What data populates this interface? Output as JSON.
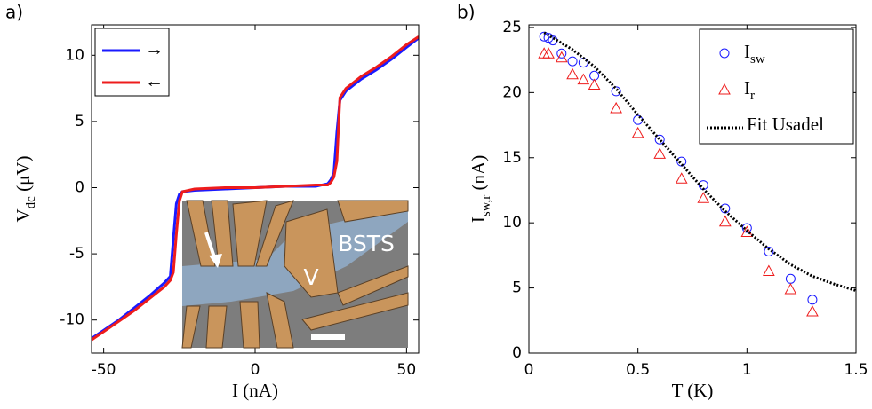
{
  "panel_labels": [
    "a)",
    "b)"
  ],
  "chart_data": [
    {
      "type": "line",
      "xlabel": "I (nA)",
      "ylabel": {
        "text": "V",
        "sub": "dc",
        "unit": " (μV)"
      },
      "xlim": [
        -54,
        54
      ],
      "ylim": [
        -12.5,
        12.3
      ],
      "xticks": [
        -50,
        0,
        50
      ],
      "yticks": [
        -10,
        -5,
        0,
        5,
        10
      ],
      "legend": "upper left",
      "x": [
        -54,
        -45,
        -40,
        -35,
        -30,
        -28,
        -27,
        -26,
        -25,
        -24,
        -20,
        -10,
        0,
        10,
        20,
        24,
        25,
        26,
        27,
        28,
        30,
        35,
        40,
        45,
        50,
        54
      ],
      "series": [
        {
          "name": "→",
          "color": "#1a1aff",
          "values": [
            -11.4,
            -10.0,
            -9.1,
            -8.2,
            -7.2,
            -6.7,
            -3.9,
            -1.2,
            -0.5,
            -0.3,
            -0.2,
            -0.1,
            0.0,
            0.1,
            0.1,
            0.3,
            0.6,
            1.1,
            4.2,
            6.6,
            7.3,
            8.2,
            8.9,
            9.7,
            10.6,
            11.3
          ]
        },
        {
          "name": "←",
          "color": "#ee1c1c",
          "values": [
            -11.5,
            -10.1,
            -9.3,
            -8.4,
            -7.5,
            -7.0,
            -6.4,
            -3.5,
            -1.0,
            -0.3,
            -0.1,
            0.0,
            0.0,
            0.1,
            0.2,
            0.2,
            0.4,
            0.8,
            2.0,
            6.8,
            7.5,
            8.4,
            9.1,
            9.9,
            10.8,
            11.4
          ]
        }
      ],
      "inset_labels": [
        "BSTS",
        "V"
      ]
    },
    {
      "type": "scatter",
      "xlabel": "T (K)",
      "ylabel": {
        "text": "I",
        "sub": "sw,r",
        "unit": " (nA)"
      },
      "xlim": [
        0,
        1.5
      ],
      "ylim": [
        0,
        25.2
      ],
      "xticks": [
        0,
        0.5,
        1,
        1.5
      ],
      "yticks": [
        0,
        5,
        10,
        15,
        20,
        25
      ],
      "legend": "upper right",
      "series": [
        {
          "name": "I",
          "sub": "sw",
          "marker": "circle",
          "color": "#1a1aff",
          "x": [
            0.07,
            0.09,
            0.11,
            0.15,
            0.2,
            0.25,
            0.3,
            0.4,
            0.5,
            0.6,
            0.7,
            0.8,
            0.9,
            1.0,
            1.1,
            1.2,
            1.3
          ],
          "values": [
            24.3,
            24.2,
            24.0,
            23.0,
            22.4,
            22.3,
            21.3,
            20.1,
            17.9,
            16.4,
            14.7,
            12.9,
            11.1,
            9.6,
            7.8,
            5.7,
            4.1
          ]
        },
        {
          "name": "I",
          "sub": "r",
          "marker": "triangle",
          "color": "#ee1c1c",
          "x": [
            0.07,
            0.09,
            0.15,
            0.2,
            0.25,
            0.3,
            0.4,
            0.5,
            0.6,
            0.7,
            0.8,
            0.9,
            1.0,
            1.1,
            1.2,
            1.3
          ],
          "values": [
            23.0,
            23.0,
            22.7,
            21.4,
            21.0,
            20.6,
            18.8,
            16.9,
            15.3,
            13.4,
            11.9,
            10.1,
            9.3,
            6.3,
            4.9,
            3.2
          ]
        },
        {
          "name": "Fit Usadel",
          "marker": "dotted",
          "color": "#000000",
          "x": [
            0.07,
            0.1,
            0.2,
            0.3,
            0.4,
            0.5,
            0.6,
            0.7,
            0.8,
            0.9,
            1.0,
            1.1,
            1.2,
            1.3,
            1.4,
            1.5
          ],
          "values": [
            24.6,
            24.3,
            23.3,
            22.0,
            20.3,
            18.3,
            16.4,
            14.5,
            12.6,
            10.9,
            9.4,
            8.0,
            6.8,
            5.9,
            5.3,
            4.8
          ]
        }
      ]
    }
  ]
}
